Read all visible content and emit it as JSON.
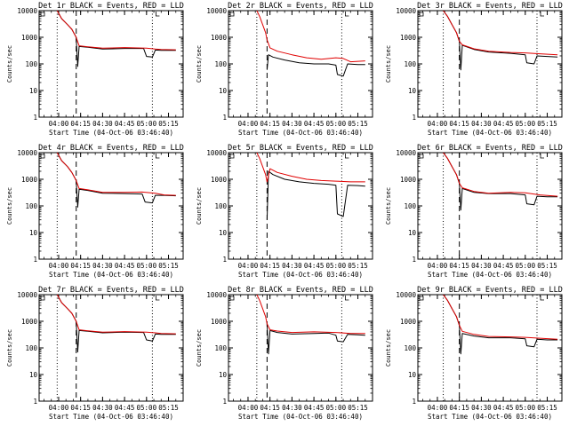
{
  "colors": {
    "events": "#000000",
    "lld": "#e00000",
    "axes": "#000000",
    "background": "#ffffff"
  },
  "chart_data": [
    {
      "type": "line",
      "title": "Det 1r BLACK = Events, RED = LLD",
      "xlabel": "Start Time (04-Oct-06 03:46:40)",
      "ylabel": "Counts/sec",
      "yscale": "log",
      "ylim": [
        1,
        10000
      ],
      "yticks": [
        "1",
        "10",
        "100",
        "1000",
        "10000"
      ],
      "xticks": [
        "04:00",
        "04:15",
        "04:30",
        "04:45",
        "05:00",
        "05:15"
      ],
      "xlim": [
        "03:46:40",
        "05:25:00"
      ],
      "markers": [
        {
          "time": "03:59",
          "style": "dotted"
        },
        {
          "time": "04:12",
          "style": "dashed"
        },
        {
          "time": "05:04",
          "style": "dotted"
        }
      ],
      "series": [
        {
          "name": "Events",
          "color": "#000000",
          "x": [
            "03:59",
            "04:02",
            "04:06",
            "04:09",
            "04:12",
            "04:13",
            "04:14",
            "04:20",
            "04:30",
            "04:45",
            "04:58",
            "05:00",
            "05:04",
            "05:06",
            "05:10",
            "05:20"
          ],
          "y": [
            10000,
            5000,
            3000,
            2000,
            1000,
            80,
            450,
            420,
            360,
            380,
            380,
            190,
            180,
            330,
            320,
            320
          ]
        },
        {
          "name": "LLD",
          "color": "#e00000",
          "x": [
            "03:59",
            "04:02",
            "04:06",
            "04:09",
            "04:12",
            "04:14",
            "04:20",
            "04:30",
            "04:45",
            "05:00",
            "05:06",
            "05:10",
            "05:20"
          ],
          "y": [
            10000,
            5000,
            3000,
            2000,
            1000,
            480,
            440,
            390,
            410,
            390,
            360,
            350,
            340
          ]
        }
      ]
    },
    {
      "type": "line",
      "title": "Det 2r BLACK = Events, RED = LLD",
      "xlabel": "Start Time (04-Oct-06 03:46:40)",
      "ylabel": "Counts/sec",
      "yscale": "log",
      "ylim": [
        1,
        10000
      ],
      "yticks": [
        "1",
        "10",
        "100",
        "1000",
        "10000"
      ],
      "xticks": [
        "04:00",
        "04:15",
        "04:30",
        "04:45",
        "05:00",
        "05:15"
      ],
      "xlim": [
        "03:46:40",
        "05:25:00"
      ],
      "markers": [
        {
          "time": "04:06",
          "style": "dotted"
        },
        {
          "time": "04:13",
          "style": "dashed"
        },
        {
          "time": "05:04",
          "style": "dotted"
        }
      ],
      "series": [
        {
          "name": "Events",
          "color": "#000000",
          "x": [
            "04:13",
            "04:14",
            "04:17",
            "04:25",
            "04:35",
            "04:45",
            "04:55",
            "05:00",
            "05:01",
            "05:05",
            "05:08",
            "05:15",
            "05:20"
          ],
          "y": [
            60,
            220,
            180,
            140,
            110,
            100,
            100,
            90,
            40,
            35,
            100,
            95,
            95
          ]
        },
        {
          "name": "LLD",
          "color": "#e00000",
          "x": [
            "04:06",
            "04:08",
            "04:10",
            "04:12",
            "04:13",
            "04:15",
            "04:20",
            "04:30",
            "04:40",
            "04:50",
            "05:00",
            "05:05",
            "05:10",
            "05:20"
          ],
          "y": [
            10000,
            6000,
            3000,
            1500,
            800,
            400,
            300,
            220,
            170,
            150,
            170,
            160,
            120,
            130
          ]
        }
      ]
    },
    {
      "type": "line",
      "title": "Det 3r BLACK = Events, RED = LLD",
      "xlabel": "Start Time (04-Oct-06 03:46:40)",
      "ylabel": "Counts/sec",
      "yscale": "log",
      "ylim": [
        1,
        10000
      ],
      "yticks": [
        "1",
        "10",
        "100",
        "1000",
        "10000"
      ],
      "xticks": [
        "04:00",
        "04:15",
        "04:30",
        "04:45",
        "05:00",
        "05:15"
      ],
      "xlim": [
        "03:46:40",
        "05:25:00"
      ],
      "markers": [
        {
          "time": "04:04",
          "style": "dotted"
        },
        {
          "time": "04:15",
          "style": "dashed"
        },
        {
          "time": "05:08",
          "style": "dotted"
        }
      ],
      "series": [
        {
          "name": "Events",
          "color": "#000000",
          "x": [
            "04:04",
            "04:07",
            "04:10",
            "04:13",
            "04:15",
            "04:16",
            "04:17",
            "04:25",
            "04:35",
            "04:50",
            "05:00",
            "05:01",
            "05:06",
            "05:08",
            "05:15",
            "05:22"
          ],
          "y": [
            10000,
            6000,
            3000,
            1500,
            700,
            60,
            500,
            350,
            280,
            250,
            220,
            110,
            100,
            200,
            190,
            180
          ]
        },
        {
          "name": "LLD",
          "color": "#e00000",
          "x": [
            "04:04",
            "04:07",
            "04:10",
            "04:13",
            "04:15",
            "04:17",
            "04:25",
            "04:35",
            "04:50",
            "05:00",
            "05:10",
            "05:22"
          ],
          "y": [
            10000,
            6000,
            3000,
            1500,
            700,
            520,
            370,
            300,
            270,
            260,
            240,
            220
          ]
        }
      ]
    },
    {
      "type": "line",
      "title": "Det 4r BLACK = Events, RED = LLD",
      "xlabel": "Start Time (04-Oct-06 03:46:40)",
      "ylabel": "Counts/sec",
      "yscale": "log",
      "ylim": [
        1,
        10000
      ],
      "yticks": [
        "1",
        "10",
        "100",
        "1000",
        "10000"
      ],
      "xticks": [
        "04:00",
        "04:15",
        "04:30",
        "04:45",
        "05:00",
        "05:15"
      ],
      "xlim": [
        "03:46:40",
        "05:25:00"
      ],
      "markers": [
        {
          "time": "03:59",
          "style": "dotted"
        },
        {
          "time": "04:12",
          "style": "dashed"
        },
        {
          "time": "05:04",
          "style": "dotted"
        }
      ],
      "series": [
        {
          "name": "Events",
          "color": "#000000",
          "x": [
            "03:59",
            "04:02",
            "04:06",
            "04:09",
            "04:12",
            "04:13",
            "04:14",
            "04:20",
            "04:30",
            "04:45",
            "04:57",
            "04:59",
            "05:04",
            "05:06",
            "05:12",
            "05:20"
          ],
          "y": [
            10000,
            5000,
            3000,
            1800,
            900,
            90,
            420,
            380,
            300,
            290,
            280,
            140,
            130,
            250,
            250,
            240
          ]
        },
        {
          "name": "LLD",
          "color": "#e00000",
          "x": [
            "03:59",
            "04:02",
            "04:06",
            "04:09",
            "04:12",
            "04:14",
            "04:20",
            "04:30",
            "04:45",
            "04:57",
            "05:06",
            "05:12",
            "05:20"
          ],
          "y": [
            10000,
            5000,
            3000,
            1800,
            900,
            450,
            400,
            320,
            320,
            330,
            300,
            260,
            250
          ]
        }
      ]
    },
    {
      "type": "line",
      "title": "Det 5r BLACK = Events, RED = LLD",
      "xlabel": "Start Time (04-Oct-06 03:46:40)",
      "ylabel": "Counts/sec",
      "yscale": "log",
      "ylim": [
        1,
        10000
      ],
      "yticks": [
        "1",
        "10",
        "100",
        "1000",
        "10000"
      ],
      "xticks": [
        "04:00",
        "04:15",
        "04:30",
        "04:45",
        "05:00",
        "05:15"
      ],
      "xlim": [
        "03:46:40",
        "05:25:00"
      ],
      "markers": [
        {
          "time": "04:06",
          "style": "dotted"
        },
        {
          "time": "04:13",
          "style": "dashed"
        },
        {
          "time": "05:04",
          "style": "dotted"
        }
      ],
      "series": [
        {
          "name": "Events",
          "color": "#000000",
          "x": [
            "04:13",
            "04:14",
            "04:17",
            "04:25",
            "04:35",
            "04:45",
            "04:55",
            "05:00",
            "05:01",
            "05:05",
            "05:08",
            "05:15",
            "05:20"
          ],
          "y": [
            30,
            2000,
            1500,
            1000,
            800,
            700,
            650,
            600,
            50,
            40,
            600,
            580,
            550
          ]
        },
        {
          "name": "LLD",
          "color": "#e00000",
          "x": [
            "04:06",
            "04:08",
            "04:10",
            "04:12",
            "04:13",
            "04:15",
            "04:20",
            "04:30",
            "04:40",
            "04:50",
            "05:00",
            "05:10",
            "05:20"
          ],
          "y": [
            10000,
            6000,
            3000,
            1500,
            800,
            2500,
            1800,
            1300,
            1000,
            900,
            850,
            800,
            800
          ]
        }
      ]
    },
    {
      "type": "line",
      "title": "Det 6r BLACK = Events, RED = LLD",
      "xlabel": "Start Time (04-Oct-06 03:46:40)",
      "ylabel": "Counts/sec",
      "yscale": "log",
      "ylim": [
        1,
        10000
      ],
      "yticks": [
        "1",
        "10",
        "100",
        "1000",
        "10000"
      ],
      "xticks": [
        "04:00",
        "04:15",
        "04:30",
        "04:45",
        "05:00",
        "05:15"
      ],
      "xlim": [
        "03:46:40",
        "05:25:00"
      ],
      "markers": [
        {
          "time": "04:04",
          "style": "dotted"
        },
        {
          "time": "04:15",
          "style": "dashed"
        },
        {
          "time": "05:08",
          "style": "dotted"
        }
      ],
      "series": [
        {
          "name": "Events",
          "color": "#000000",
          "x": [
            "04:04",
            "04:07",
            "04:10",
            "04:13",
            "04:15",
            "04:16",
            "04:17",
            "04:25",
            "04:35",
            "04:50",
            "05:00",
            "05:01",
            "05:06",
            "05:08",
            "05:15",
            "05:22"
          ],
          "y": [
            10000,
            6000,
            3000,
            1500,
            700,
            70,
            450,
            320,
            290,
            290,
            260,
            120,
            110,
            230,
            220,
            220
          ]
        },
        {
          "name": "LLD",
          "color": "#e00000",
          "x": [
            "04:04",
            "04:07",
            "04:10",
            "04:13",
            "04:15",
            "04:17",
            "04:25",
            "04:35",
            "04:50",
            "05:00",
            "05:10",
            "05:22"
          ],
          "y": [
            10000,
            6000,
            3000,
            1500,
            700,
            480,
            350,
            300,
            320,
            310,
            260,
            230
          ]
        }
      ]
    },
    {
      "type": "line",
      "title": "Det 7r BLACK = Events, RED = LLD",
      "xlabel": "Start Time (04-Oct-06 03:46:40)",
      "ylabel": "Counts/sec",
      "yscale": "log",
      "ylim": [
        1,
        10000
      ],
      "yticks": [
        "1",
        "10",
        "100",
        "1000",
        "10000"
      ],
      "xticks": [
        "04:00",
        "04:15",
        "04:30",
        "04:45",
        "05:00",
        "05:15"
      ],
      "xlim": [
        "03:46:40",
        "05:25:00"
      ],
      "markers": [
        {
          "time": "03:59",
          "style": "dotted"
        },
        {
          "time": "04:12",
          "style": "dashed"
        },
        {
          "time": "05:04",
          "style": "dotted"
        }
      ],
      "series": [
        {
          "name": "Events",
          "color": "#000000",
          "x": [
            "03:59",
            "04:02",
            "04:06",
            "04:09",
            "04:12",
            "04:13",
            "04:14",
            "04:20",
            "04:30",
            "04:45",
            "04:58",
            "05:00",
            "05:04",
            "05:06",
            "05:10",
            "05:20"
          ],
          "y": [
            10000,
            5000,
            3000,
            2000,
            1000,
            70,
            450,
            420,
            370,
            390,
            380,
            200,
            180,
            330,
            320,
            320
          ]
        },
        {
          "name": "LLD",
          "color": "#e00000",
          "x": [
            "03:59",
            "04:02",
            "04:06",
            "04:09",
            "04:12",
            "04:14",
            "04:20",
            "04:30",
            "04:45",
            "05:00",
            "05:06",
            "05:10",
            "05:20"
          ],
          "y": [
            10000,
            5000,
            3000,
            2000,
            1000,
            480,
            440,
            390,
            410,
            390,
            370,
            350,
            340
          ]
        }
      ]
    },
    {
      "type": "line",
      "title": "Det 8r BLACK = Events, RED = LLD",
      "xlabel": "Start Time (04-Oct-06 03:46:40)",
      "ylabel": "Counts/sec",
      "yscale": "log",
      "ylim": [
        1,
        10000
      ],
      "yticks": [
        "1",
        "10",
        "100",
        "1000",
        "10000"
      ],
      "xticks": [
        "04:00",
        "04:15",
        "04:30",
        "04:45",
        "05:00",
        "05:15"
      ],
      "xlim": [
        "03:46:40",
        "05:25:00"
      ],
      "markers": [
        {
          "time": "04:06",
          "style": "dotted"
        },
        {
          "time": "04:13",
          "style": "dashed"
        },
        {
          "time": "05:04",
          "style": "dotted"
        }
      ],
      "series": [
        {
          "name": "Events",
          "color": "#000000",
          "x": [
            "04:13",
            "04:14",
            "04:15",
            "04:20",
            "04:30",
            "04:45",
            "04:55",
            "05:00",
            "05:01",
            "05:05",
            "05:08",
            "05:15",
            "05:20"
          ],
          "y": [
            800,
            60,
            450,
            380,
            330,
            350,
            360,
            300,
            180,
            170,
            320,
            310,
            300
          ]
        },
        {
          "name": "LLD",
          "color": "#e00000",
          "x": [
            "04:06",
            "04:08",
            "04:10",
            "04:12",
            "04:13",
            "04:15",
            "04:20",
            "04:30",
            "04:45",
            "05:00",
            "05:10",
            "05:20"
          ],
          "y": [
            10000,
            6000,
            3000,
            1500,
            800,
            480,
            430,
            380,
            400,
            380,
            350,
            350
          ]
        }
      ]
    },
    {
      "type": "line",
      "title": "Det 9r BLACK = Events, RED = LLD",
      "xlabel": "Start Time (04-Oct-06 03:46:40)",
      "ylabel": "Counts/sec",
      "yscale": "log",
      "ylim": [
        1,
        10000
      ],
      "yticks": [
        "1",
        "10",
        "100",
        "1000",
        "10000"
      ],
      "xticks": [
        "04:00",
        "04:15",
        "04:30",
        "04:45",
        "05:00",
        "05:15"
      ],
      "xlim": [
        "03:46:40",
        "05:25:00"
      ],
      "markers": [
        {
          "time": "04:04",
          "style": "dotted"
        },
        {
          "time": "04:15",
          "style": "dashed"
        },
        {
          "time": "05:08",
          "style": "dotted"
        }
      ],
      "series": [
        {
          "name": "Events",
          "color": "#000000",
          "x": [
            "04:04",
            "04:07",
            "04:10",
            "04:13",
            "04:15",
            "04:16",
            "04:17",
            "04:25",
            "04:35",
            "04:50",
            "05:00",
            "05:01",
            "05:06",
            "05:08",
            "05:15",
            "05:22"
          ],
          "y": [
            10000,
            6000,
            3000,
            1500,
            700,
            60,
            350,
            280,
            240,
            240,
            220,
            120,
            110,
            210,
            200,
            200
          ]
        },
        {
          "name": "LLD",
          "color": "#e00000",
          "x": [
            "04:04",
            "04:07",
            "04:10",
            "04:13",
            "04:15",
            "04:17",
            "04:25",
            "04:35",
            "04:50",
            "05:00",
            "05:10",
            "05:22"
          ],
          "y": [
            10000,
            6000,
            3000,
            1500,
            700,
            420,
            320,
            270,
            260,
            250,
            230,
            210
          ]
        }
      ]
    }
  ]
}
